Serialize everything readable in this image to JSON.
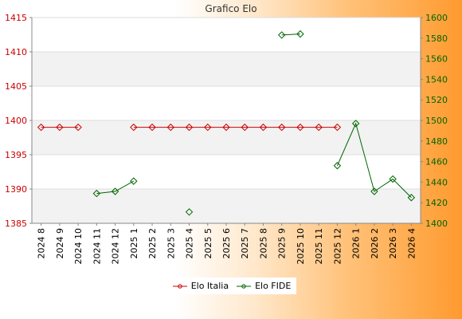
{
  "chart_data": {
    "type": "line",
    "title": "Grafico Elo",
    "categories": [
      "2024 8",
      "2024 9",
      "2024 10",
      "2024 11",
      "2024 12",
      "2025 1",
      "2025 2",
      "2025 3",
      "2025 4",
      "2025 5",
      "2025 6",
      "2025 7",
      "2025 8",
      "2025 9",
      "2025 10",
      "2025 11",
      "2025 12",
      "2026 1",
      "2026 2",
      "2026 3",
      "2026 4"
    ],
    "y_left": {
      "ylim": [
        1385,
        1415
      ],
      "ticks": [
        1385,
        1390,
        1395,
        1400,
        1405,
        1410,
        1415
      ],
      "color": "#cc0000"
    },
    "y_right": {
      "ylim": [
        1400,
        1600
      ],
      "ticks": [
        1400,
        1420,
        1440,
        1460,
        1480,
        1500,
        1520,
        1540,
        1560,
        1580,
        1600
      ],
      "color": "#006600"
    },
    "grid": true,
    "legend_position": "bottom",
    "series": [
      {
        "name": "Elo Italia",
        "axis": "left",
        "color": "#cc0000",
        "values": [
          1399,
          1399,
          1399,
          null,
          null,
          1399,
          1399,
          1399,
          1399,
          1399,
          1399,
          1399,
          1399,
          1399,
          1399,
          1399,
          1399,
          null,
          null,
          null,
          null
        ]
      },
      {
        "name": "Elo FIDE",
        "axis": "right",
        "color": "#006600",
        "values": [
          null,
          null,
          null,
          1429,
          1431,
          1441,
          null,
          null,
          1411,
          null,
          null,
          null,
          null,
          1583,
          1584,
          null,
          1456,
          1497,
          1431,
          1443,
          1425
        ]
      }
    ]
  }
}
